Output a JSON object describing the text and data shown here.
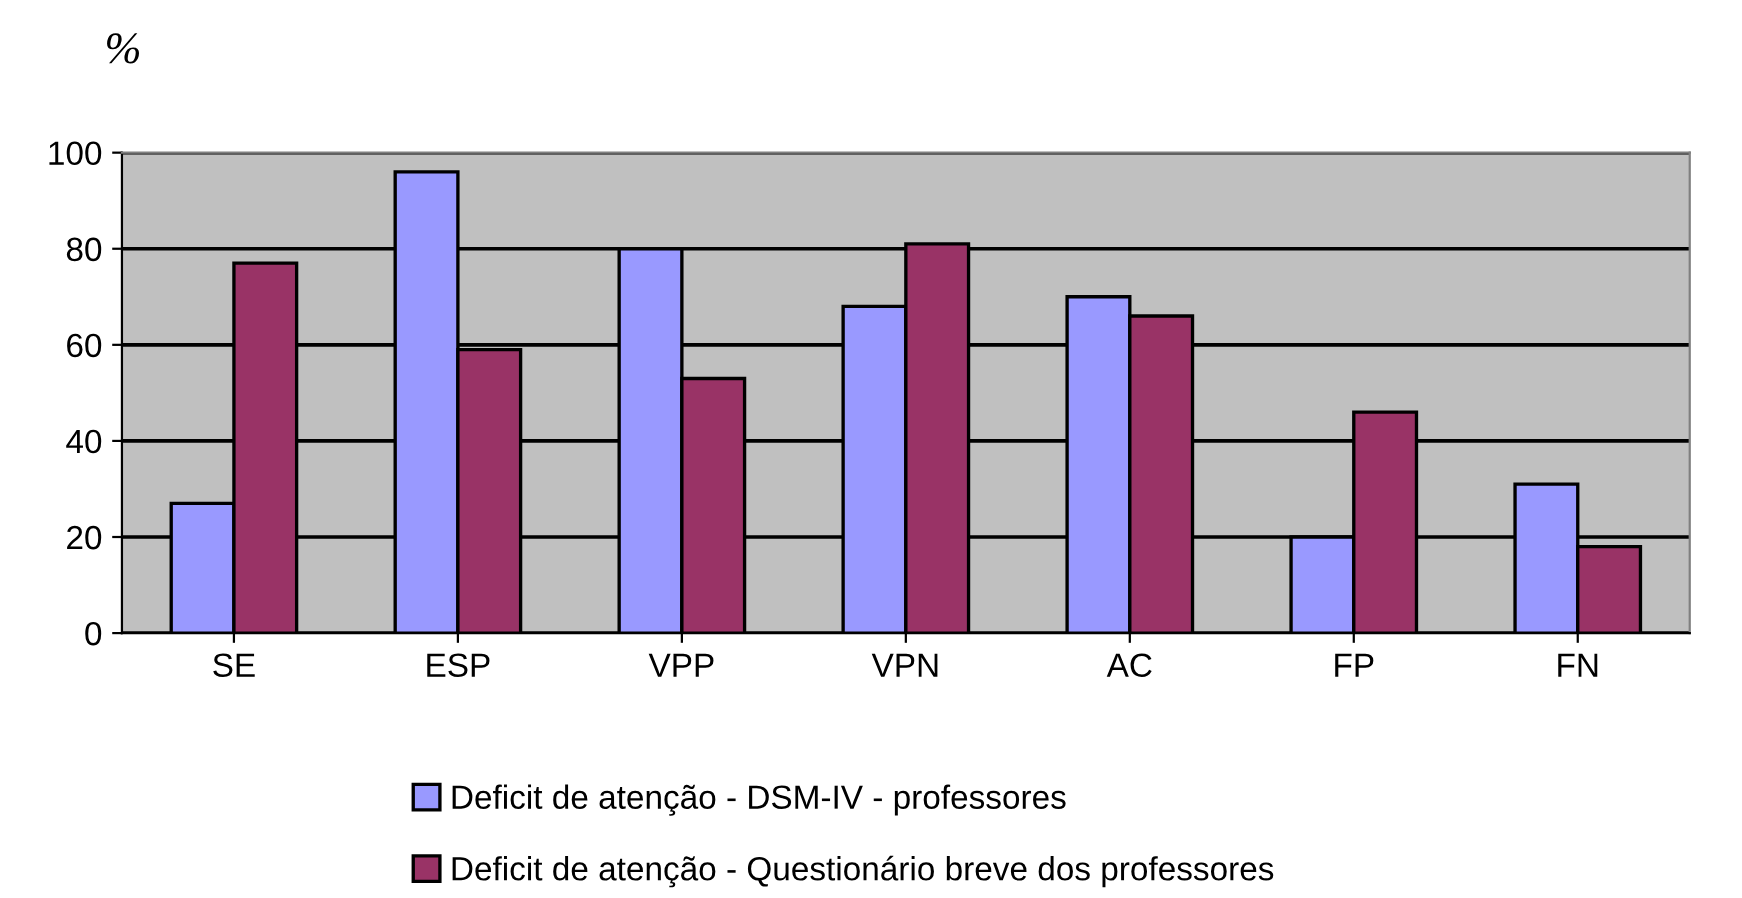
{
  "chart_data": {
    "type": "bar",
    "ylabel": "%",
    "categories": [
      "SE",
      "ESP",
      "VPP",
      "VPN",
      "AC",
      "FP",
      "FN"
    ],
    "series": [
      {
        "name": "Deficit de atenção - DSM-IV - professores",
        "color": "#9999ff",
        "values": [
          27,
          96,
          80,
          68,
          70,
          20,
          31
        ]
      },
      {
        "name": "Deficit de atenção - Questionário breve dos professores",
        "color": "#993366",
        "values": [
          77,
          59,
          53,
          81,
          66,
          46,
          18
        ]
      }
    ],
    "ylim": [
      0,
      100
    ],
    "yticks": [
      0,
      20,
      40,
      60,
      80,
      100
    ],
    "grid": "y",
    "legend": "bottom"
  }
}
